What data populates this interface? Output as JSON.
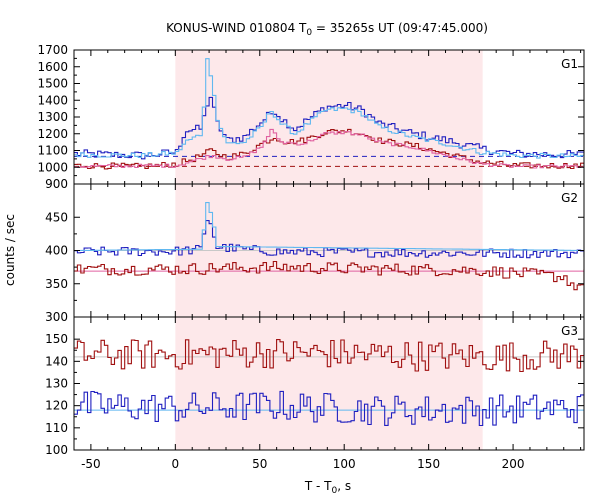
{
  "chart_data": {
    "type": "line",
    "title_main": "KONUS-WIND 010804 T",
    "title_sub": "0",
    "title_rest": " = 35265s UT (09:47:45.000)",
    "ylabel": "counts / sec",
    "xlabel_main": "T - T",
    "xlabel_sub": "0",
    "xlabel_rest": ", s",
    "xlim": [
      -60,
      242
    ],
    "xticks": [
      -50,
      0,
      50,
      100,
      150,
      200
    ],
    "shaded_interval": [
      0,
      182
    ],
    "colors": {
      "shade": "#fde8ea",
      "dark_red": "#a01010",
      "pink": "#e060a0",
      "blue": "#2020c0",
      "light_blue": "#60b8f0",
      "grey_line": "#c8c8c8"
    },
    "panels": [
      {
        "label": "G1",
        "ylim": [
          900,
          1700
        ],
        "yticks": [
          900,
          1000,
          1100,
          1200,
          1300,
          1400,
          1500,
          1600,
          1700
        ],
        "background_levels": [
          {
            "series": "blue",
            "value": 1065
          },
          {
            "series": "dark_red",
            "value": 1005
          }
        ],
        "series": [
          {
            "color": "blue",
            "dx": 2,
            "anchors": [
              [
                -60,
                1080
              ],
              [
                -20,
                1070
              ],
              [
                0,
                1090
              ],
              [
                5,
                1220
              ],
              [
                15,
                1230
              ],
              [
                17,
                1360
              ],
              [
                20,
                1420
              ],
              [
                24,
                1260
              ],
              [
                30,
                1160
              ],
              [
                40,
                1180
              ],
              [
                50,
                1270
              ],
              [
                58,
                1340
              ],
              [
                62,
                1290
              ],
              [
                70,
                1230
              ],
              [
                80,
                1300
              ],
              [
                88,
                1360
              ],
              [
                100,
                1370
              ],
              [
                110,
                1340
              ],
              [
                120,
                1260
              ],
              [
                140,
                1200
              ],
              [
                160,
                1160
              ],
              [
                180,
                1110
              ],
              [
                200,
                1080
              ],
              [
                242,
                1075
              ]
            ],
            "amp": 25
          },
          {
            "color": "light_blue",
            "dx": 2,
            "anchors": [
              [
                -60,
                1075
              ],
              [
                -20,
                1070
              ],
              [
                0,
                1085
              ],
              [
                5,
                1150
              ],
              [
                15,
                1200
              ],
              [
                17,
                1540
              ],
              [
                18,
                1640
              ],
              [
                21,
                1520
              ],
              [
                24,
                1280
              ],
              [
                30,
                1140
              ],
              [
                40,
                1150
              ],
              [
                50,
                1240
              ],
              [
                56,
                1340
              ],
              [
                62,
                1260
              ],
              [
                70,
                1200
              ],
              [
                80,
                1280
              ],
              [
                88,
                1340
              ],
              [
                100,
                1350
              ],
              [
                110,
                1320
              ],
              [
                120,
                1240
              ],
              [
                140,
                1180
              ],
              [
                160,
                1140
              ],
              [
                180,
                1090
              ],
              [
                200,
                1070
              ],
              [
                242,
                1065
              ]
            ],
            "amp": 15
          },
          {
            "color": "dark_red",
            "dx": 2,
            "anchors": [
              [
                -60,
                1010
              ],
              [
                -20,
                1005
              ],
              [
                0,
                1020
              ],
              [
                10,
                1050
              ],
              [
                17,
                1080
              ],
              [
                20,
                1100
              ],
              [
                24,
                1080
              ],
              [
                30,
                1060
              ],
              [
                40,
                1080
              ],
              [
                50,
                1140
              ],
              [
                58,
                1180
              ],
              [
                65,
                1150
              ],
              [
                75,
                1160
              ],
              [
                88,
                1210
              ],
              [
                100,
                1220
              ],
              [
                110,
                1200
              ],
              [
                120,
                1160
              ],
              [
                140,
                1130
              ],
              [
                160,
                1080
              ],
              [
                180,
                1030
              ],
              [
                200,
                1010
              ],
              [
                242,
                1010
              ]
            ],
            "amp": 18
          },
          {
            "color": "pink",
            "dx": 2,
            "anchors": [
              [
                -60,
                1005
              ],
              [
                0,
                1010
              ],
              [
                10,
                1040
              ],
              [
                17,
                1060
              ],
              [
                21,
                1070
              ],
              [
                30,
                1050
              ],
              [
                40,
                1060
              ],
              [
                50,
                1120
              ],
              [
                56,
                1220
              ],
              [
                62,
                1150
              ],
              [
                75,
                1140
              ],
              [
                88,
                1200
              ],
              [
                100,
                1210
              ],
              [
                110,
                1190
              ],
              [
                120,
                1150
              ],
              [
                140,
                1120
              ],
              [
                160,
                1070
              ],
              [
                180,
                1020
              ],
              [
                200,
                1005
              ],
              [
                242,
                1005
              ]
            ],
            "amp": 10
          }
        ]
      },
      {
        "label": "G2",
        "ylim": [
          300,
          500
        ],
        "yticks": [
          300,
          350,
          400,
          450
        ],
        "background_levels": [
          {
            "series": "grey_line",
            "value": 400
          },
          {
            "series": "pink",
            "value": 369
          }
        ],
        "series": [
          {
            "color": "blue",
            "dx": 2,
            "anchors": [
              [
                -60,
                398
              ],
              [
                0,
                399
              ],
              [
                15,
                402
              ],
              [
                17,
                440
              ],
              [
                19,
                455
              ],
              [
                21,
                430
              ],
              [
                24,
                405
              ],
              [
                60,
                398
              ],
              [
                120,
                397
              ],
              [
                180,
                396
              ],
              [
                242,
                396
              ]
            ],
            "amp": 7
          },
          {
            "color": "light_blue",
            "dx": 2,
            "anchors": [
              [
                -60,
                400
              ],
              [
                15,
                402
              ],
              [
                17,
                460
              ],
              [
                18,
                472
              ],
              [
                21,
                450
              ],
              [
                24,
                406
              ],
              [
                242,
                400
              ]
            ],
            "amp": 0
          },
          {
            "color": "dark_red",
            "dx": 2,
            "anchors": [
              [
                -60,
                372
              ],
              [
                0,
                372
              ],
              [
                60,
                375
              ],
              [
                120,
                372
              ],
              [
                180,
                370
              ],
              [
                230,
                360
              ],
              [
                238,
                340
              ],
              [
                242,
                370
              ]
            ],
            "amp": 9
          }
        ]
      },
      {
        "label": "G3",
        "ylim": [
          100,
          160
        ],
        "yticks": [
          100,
          110,
          120,
          130,
          140,
          150
        ],
        "background_levels": [
          {
            "series": "grey_line",
            "value": 142
          },
          {
            "series": "light_blue",
            "value": 118
          }
        ],
        "series": [
          {
            "color": "dark_red",
            "dx": 2,
            "anchors": [
              [
                -60,
                143
              ],
              [
                0,
                143
              ],
              [
                60,
                144
              ],
              [
                120,
                143
              ],
              [
                180,
                142
              ],
              [
                242,
                143
              ]
            ],
            "amp": 7
          },
          {
            "color": "blue",
            "dx": 2,
            "anchors": [
              [
                -60,
                120
              ],
              [
                0,
                119
              ],
              [
                60,
                120
              ],
              [
                120,
                118
              ],
              [
                180,
                118
              ],
              [
                242,
                119
              ]
            ],
            "amp": 7
          }
        ]
      }
    ]
  }
}
